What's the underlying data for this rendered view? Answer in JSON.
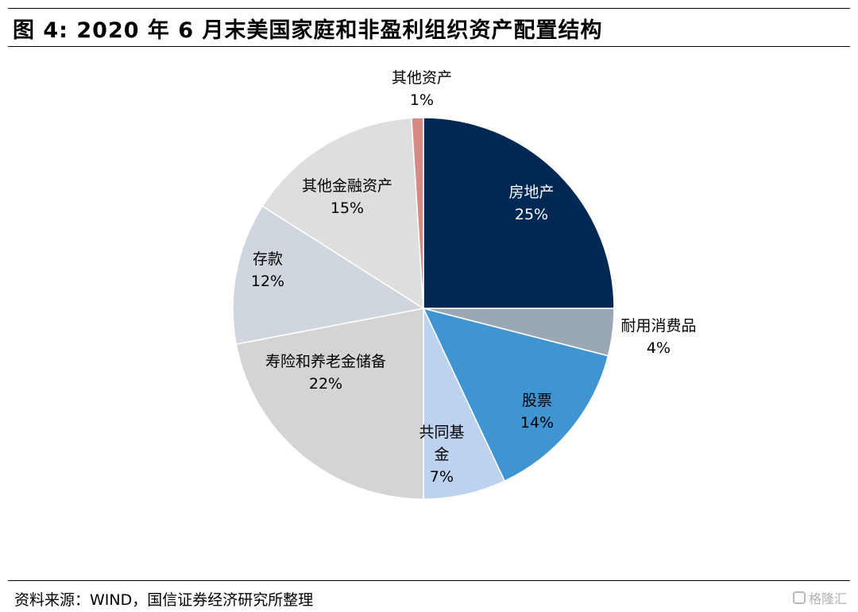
{
  "title": "图 4:  2020 年 6 月末美国家庭和非盈利组织资产配置结构",
  "source": "资料来源：WIND，国信证券经济研究所整理",
  "watermark": "格隆汇",
  "chart_data": {
    "type": "pie",
    "start": "12 o'clock",
    "direction": "clockwise",
    "legend": "none",
    "slices": [
      {
        "name": "房地产",
        "value": 25,
        "value_label": "25%",
        "color": "#002855",
        "text_color": "#ffffff"
      },
      {
        "name": "耐用消费品",
        "value": 4,
        "value_label": "4%",
        "color": "#9aa8b6",
        "text_color": "#000000"
      },
      {
        "name": "股票",
        "value": 14,
        "value_label": "14%",
        "color": "#3f94d2",
        "text_color": "#000000"
      },
      {
        "name": "共同基金",
        "value": 7,
        "value_label": "7%",
        "color": "#bcd2ee",
        "text_color": "#000000"
      },
      {
        "name": "寿险和养老金储备",
        "value": 22,
        "value_label": "22%",
        "color": "#d4d4d4",
        "text_color": "#000000"
      },
      {
        "name": "存款",
        "value": 12,
        "value_label": "12%",
        "color": "#cfd6de",
        "text_color": "#000000"
      },
      {
        "name": "其他金融资产",
        "value": 15,
        "value_label": "15%",
        "color": "#dedede",
        "text_color": "#000000"
      },
      {
        "name": "其他资产",
        "value": 1,
        "value_label": "1%",
        "color": "#d58a85",
        "text_color": "#000000"
      }
    ]
  }
}
